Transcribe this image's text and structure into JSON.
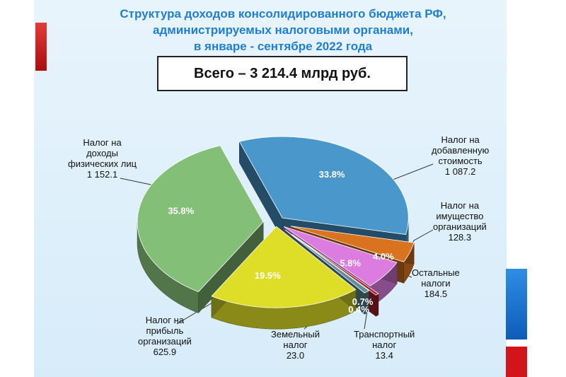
{
  "title": {
    "line1": "Структура доходов консолидированного бюджета РФ,",
    "line2": "администрируемых налоговыми органами,",
    "line3": "в январе - сентябре 2022 года"
  },
  "total_label": "Всего – 3 214.4 млрд руб.",
  "colors": {
    "title": "#1f7ed3",
    "accent_red": "#d3151b",
    "accent_blue": "#1f74d0"
  },
  "chart_data": {
    "type": "pie",
    "title": "Структура доходов консолидированного бюджета РФ, администрируемых налоговыми органами, в январе - сентябре 2022 года",
    "total": "Всего – 3 214.4 млрд руб.",
    "slices": [
      {
        "key": "vat",
        "name_lines": [
          "Налог на",
          "добавленную",
          "стоимость"
        ],
        "value": 1087.2,
        "value_label": "1 087.2",
        "percent": "33.8%",
        "color": "#4a97cc"
      },
      {
        "key": "property",
        "name_lines": [
          "Налог на",
          "имущество",
          "организаций"
        ],
        "value": 128.3,
        "value_label": "128.3",
        "percent": "4.0%",
        "color": "#d9731f"
      },
      {
        "key": "other",
        "name_lines": [
          "Остальные",
          "налоги"
        ],
        "value": 184.5,
        "value_label": "184.5",
        "percent": "5.8%",
        "color": "#dc7be0"
      },
      {
        "key": "transport",
        "name_lines": [
          "Транспортный",
          "налог"
        ],
        "value": 13.4,
        "value_label": "13.4",
        "percent": "0.4%",
        "color": "#b0222a"
      },
      {
        "key": "land",
        "name_lines": [
          "Земельный",
          "налог"
        ],
        "value": 23.0,
        "value_label": "23.0",
        "percent": "0.7%",
        "color": "#5f8e9c"
      },
      {
        "key": "profit",
        "name_lines": [
          "Налог на",
          "прибыль",
          "организаций"
        ],
        "value": 625.9,
        "value_label": "625.9",
        "percent": "19.5%",
        "color": "#dede28"
      },
      {
        "key": "ndfl",
        "name_lines": [
          "Налог на",
          "доходы",
          "физических лиц"
        ],
        "value": 1152.1,
        "value_label": "1 152.1",
        "percent": "35.8%",
        "color": "#84bf78"
      }
    ]
  }
}
